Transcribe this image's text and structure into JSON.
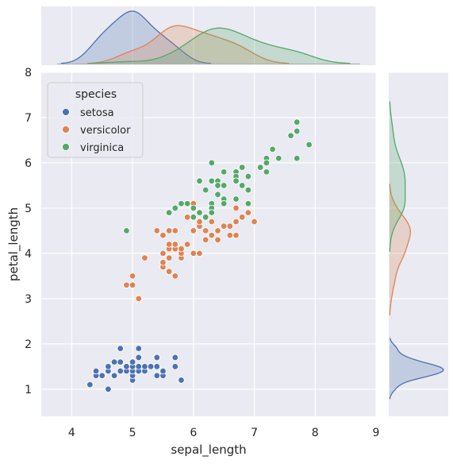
{
  "chart_data": {
    "type": "scatter",
    "title": "",
    "xlabel": "sepal_length",
    "ylabel": "petal_length",
    "xlim": [
      3.5,
      9.0
    ],
    "ylim": [
      0.4,
      8.0
    ],
    "xticks": [
      4,
      5,
      6,
      7,
      8,
      9
    ],
    "yticks": [
      1,
      2,
      3,
      4,
      5,
      6,
      7,
      8
    ],
    "grid": true,
    "legend": {
      "title": "species",
      "position": "top-left"
    },
    "marginals": {
      "top": "kde of sepal_length by species",
      "right": "kde of petal_length by species"
    },
    "series": [
      {
        "name": "setosa",
        "color": "#4c72b0",
        "points": [
          [
            4.3,
            1.1
          ],
          [
            4.4,
            1.3
          ],
          [
            4.4,
            1.4
          ],
          [
            4.5,
            1.3
          ],
          [
            4.6,
            1.0
          ],
          [
            4.6,
            1.4
          ],
          [
            4.6,
            1.5
          ],
          [
            4.7,
            1.3
          ],
          [
            4.7,
            1.6
          ],
          [
            4.8,
            1.4
          ],
          [
            4.8,
            1.6
          ],
          [
            4.8,
            1.9
          ],
          [
            4.9,
            1.4
          ],
          [
            4.9,
            1.5
          ],
          [
            5.0,
            1.2
          ],
          [
            5.0,
            1.3
          ],
          [
            5.0,
            1.4
          ],
          [
            5.0,
            1.5
          ],
          [
            5.0,
            1.6
          ],
          [
            5.1,
            1.4
          ],
          [
            5.1,
            1.5
          ],
          [
            5.1,
            1.7
          ],
          [
            5.1,
            1.9
          ],
          [
            5.2,
            1.4
          ],
          [
            5.2,
            1.5
          ],
          [
            5.3,
            1.5
          ],
          [
            5.4,
            1.3
          ],
          [
            5.4,
            1.5
          ],
          [
            5.4,
            1.7
          ],
          [
            5.5,
            1.3
          ],
          [
            5.5,
            1.4
          ],
          [
            5.7,
            1.5
          ],
          [
            5.7,
            1.7
          ],
          [
            5.8,
            1.2
          ]
        ]
      },
      {
        "name": "versicolor",
        "color": "#dd8452",
        "points": [
          [
            4.9,
            3.3
          ],
          [
            4.9,
            4.5
          ],
          [
            5.0,
            3.3
          ],
          [
            5.0,
            3.5
          ],
          [
            5.1,
            3.0
          ],
          [
            5.2,
            3.9
          ],
          [
            5.4,
            4.5
          ],
          [
            5.5,
            3.7
          ],
          [
            5.5,
            3.8
          ],
          [
            5.5,
            4.0
          ],
          [
            5.5,
            4.4
          ],
          [
            5.6,
            3.6
          ],
          [
            5.6,
            3.9
          ],
          [
            5.6,
            4.1
          ],
          [
            5.6,
            4.2
          ],
          [
            5.6,
            4.5
          ],
          [
            5.7,
            3.5
          ],
          [
            5.7,
            4.1
          ],
          [
            5.7,
            4.2
          ],
          [
            5.7,
            4.5
          ],
          [
            5.8,
            3.9
          ],
          [
            5.8,
            4.0
          ],
          [
            5.8,
            4.1
          ],
          [
            5.9,
            4.2
          ],
          [
            5.9,
            4.8
          ],
          [
            6.0,
            4.0
          ],
          [
            6.0,
            4.5
          ],
          [
            6.0,
            5.1
          ],
          [
            6.1,
            4.0
          ],
          [
            6.1,
            4.6
          ],
          [
            6.1,
            4.7
          ],
          [
            6.2,
            4.3
          ],
          [
            6.2,
            4.5
          ],
          [
            6.3,
            4.4
          ],
          [
            6.3,
            4.7
          ],
          [
            6.3,
            4.9
          ],
          [
            6.4,
            4.3
          ],
          [
            6.4,
            4.5
          ],
          [
            6.5,
            4.6
          ],
          [
            6.6,
            4.4
          ],
          [
            6.6,
            4.6
          ],
          [
            6.7,
            4.4
          ],
          [
            6.7,
            4.7
          ],
          [
            6.7,
            5.0
          ],
          [
            6.8,
            4.8
          ],
          [
            6.9,
            4.9
          ],
          [
            7.0,
            4.7
          ]
        ]
      },
      {
        "name": "virginica",
        "color": "#55a868",
        "points": [
          [
            4.9,
            4.5
          ],
          [
            5.6,
            4.9
          ],
          [
            5.7,
            5.0
          ],
          [
            5.8,
            5.1
          ],
          [
            5.9,
            5.1
          ],
          [
            6.0,
            4.8
          ],
          [
            6.0,
            5.0
          ],
          [
            6.1,
            5.6
          ],
          [
            6.1,
            4.9
          ],
          [
            6.2,
            5.4
          ],
          [
            6.2,
            4.8
          ],
          [
            6.3,
            6.0
          ],
          [
            6.3,
            5.6
          ],
          [
            6.3,
            5.1
          ],
          [
            6.3,
            5.0
          ],
          [
            6.3,
            4.9
          ],
          [
            6.4,
            5.6
          ],
          [
            6.4,
            5.5
          ],
          [
            6.4,
            5.3
          ],
          [
            6.5,
            5.8
          ],
          [
            6.5,
            5.5
          ],
          [
            6.5,
            5.2
          ],
          [
            6.5,
            5.1
          ],
          [
            6.7,
            5.8
          ],
          [
            6.7,
            5.7
          ],
          [
            6.7,
            5.6
          ],
          [
            6.7,
            5.2
          ],
          [
            6.8,
            5.9
          ],
          [
            6.8,
            5.5
          ],
          [
            6.9,
            5.7
          ],
          [
            6.9,
            5.4
          ],
          [
            6.9,
            5.1
          ],
          [
            7.1,
            5.9
          ],
          [
            7.2,
            6.1
          ],
          [
            7.2,
            6.0
          ],
          [
            7.2,
            5.8
          ],
          [
            7.3,
            6.3
          ],
          [
            7.4,
            6.1
          ],
          [
            7.6,
            6.6
          ],
          [
            7.7,
            6.9
          ],
          [
            7.7,
            6.7
          ],
          [
            7.7,
            6.1
          ],
          [
            7.9,
            6.4
          ]
        ]
      }
    ]
  }
}
